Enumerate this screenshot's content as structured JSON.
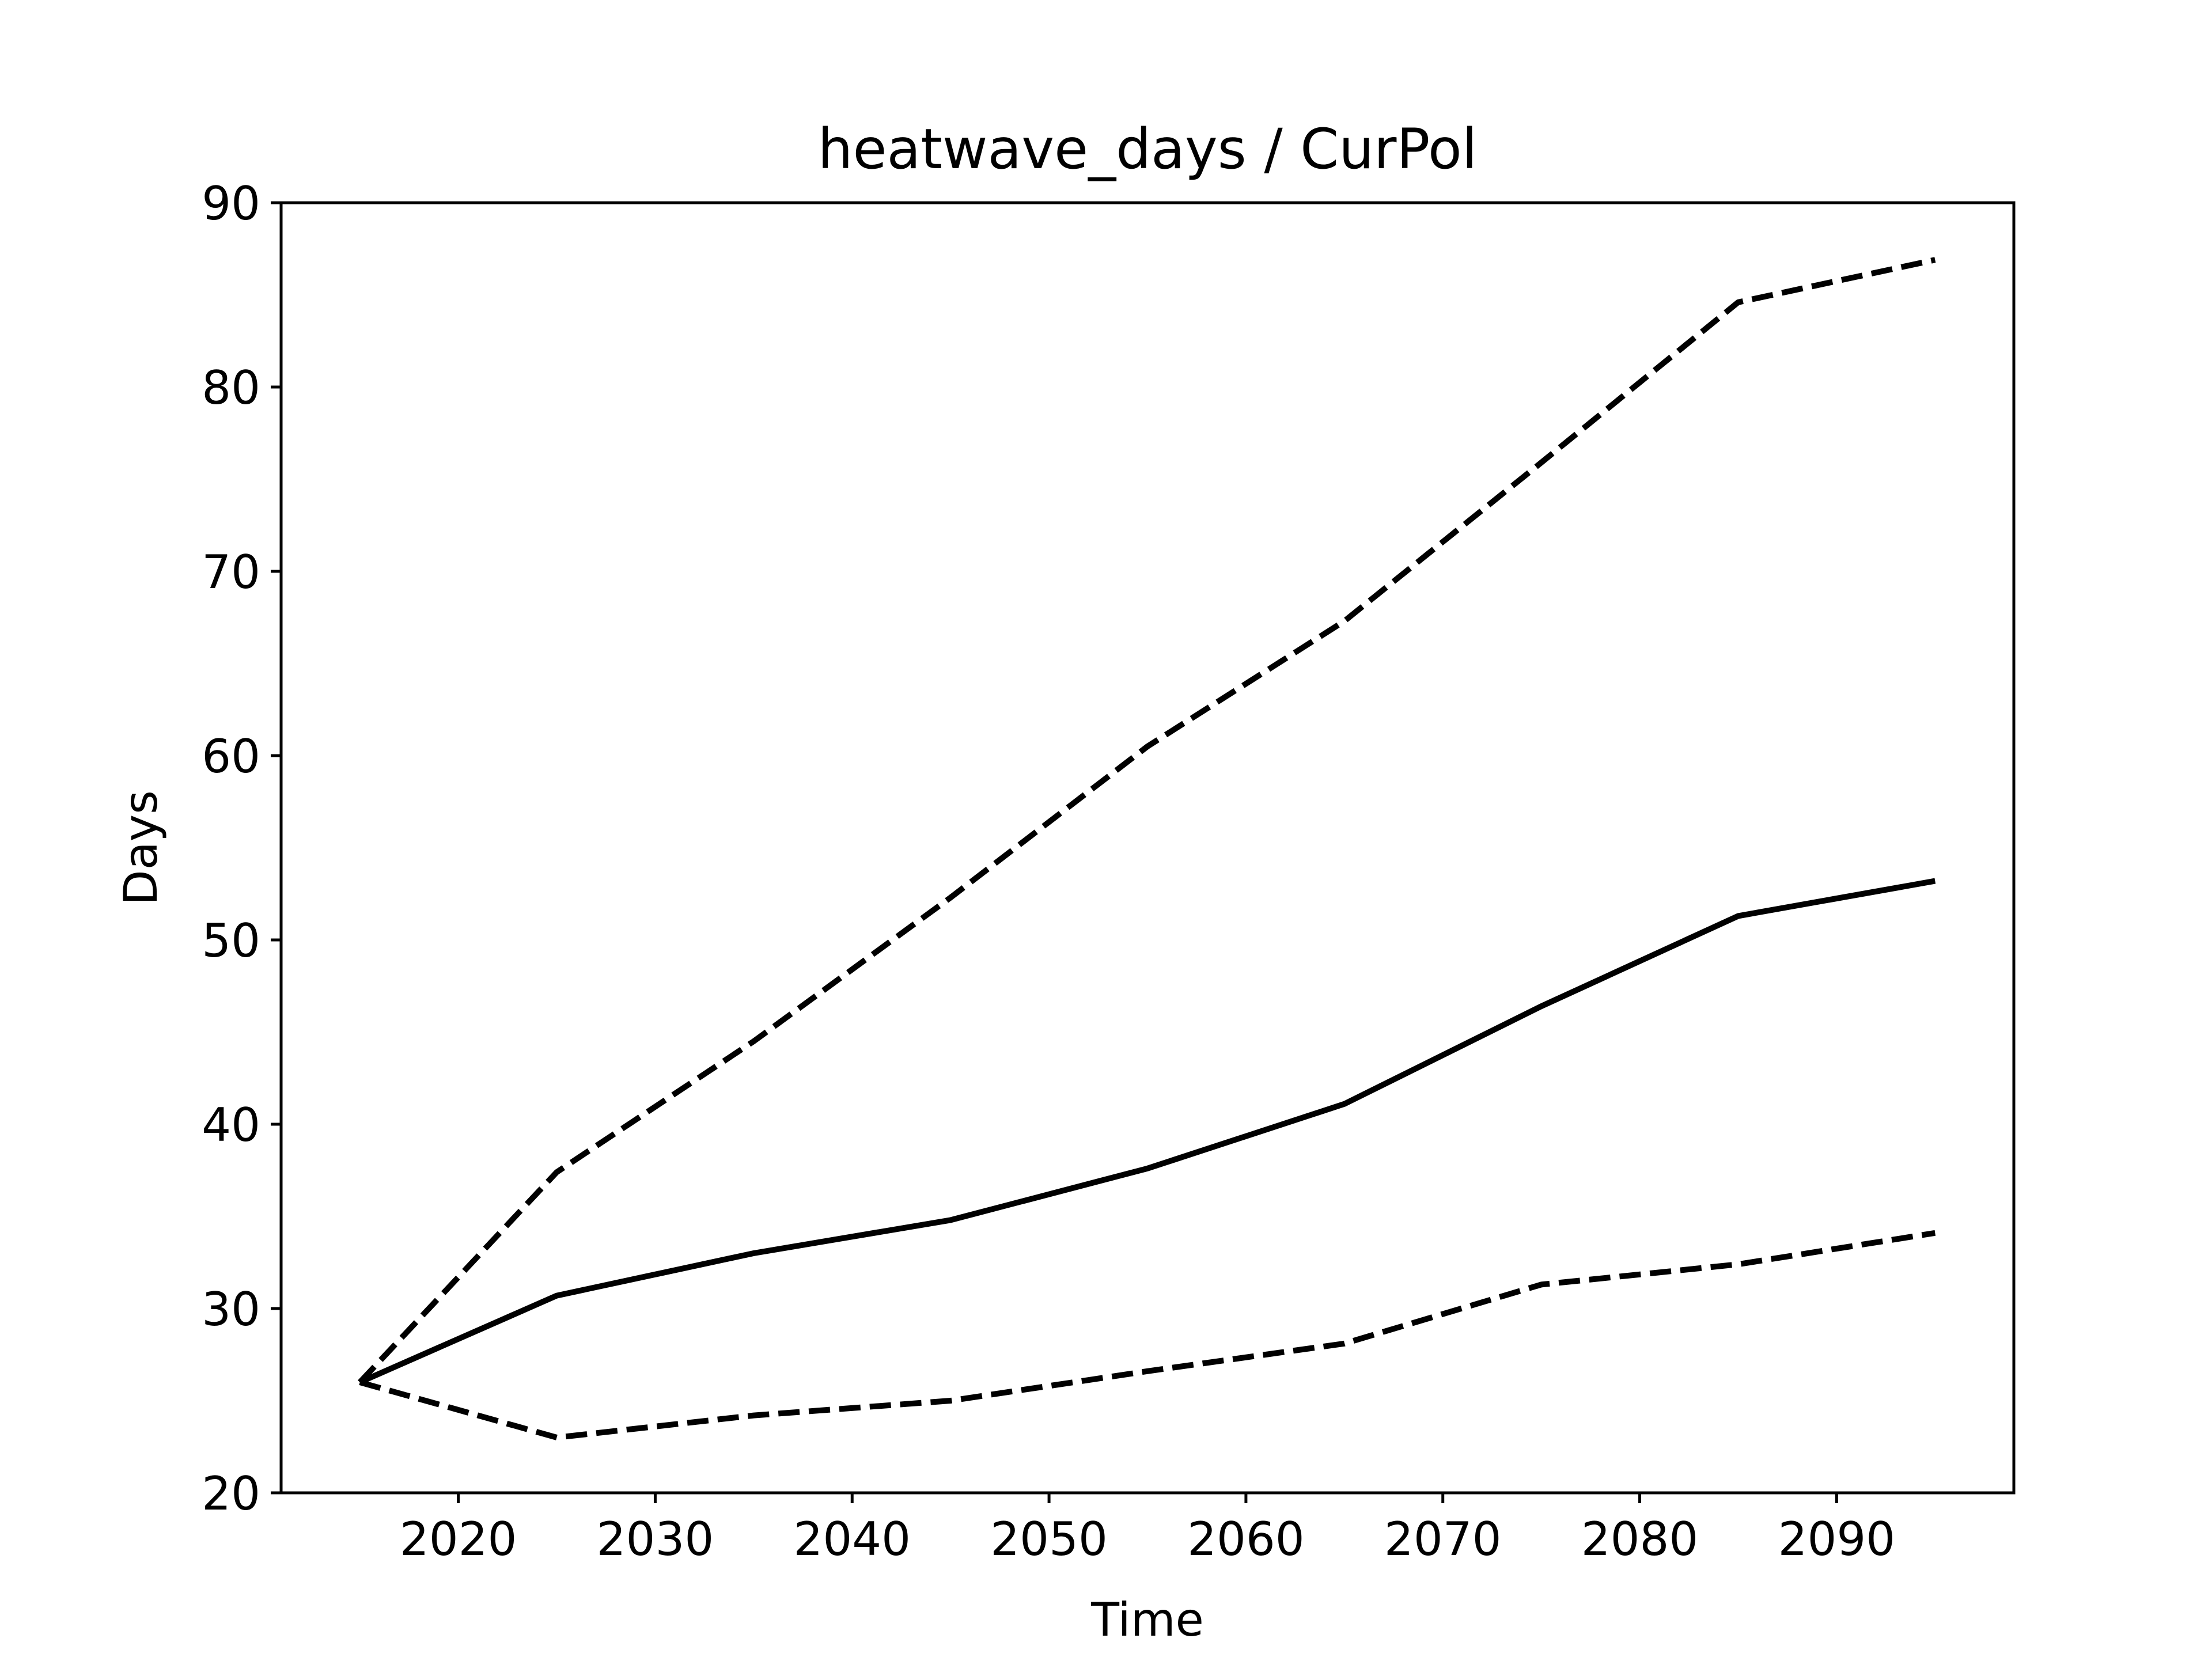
{
  "chart_data": {
    "type": "line",
    "title": "heatwave_days / CurPol",
    "xlabel": "Time",
    "ylabel": "Days",
    "xlim": [
      2011,
      2099
    ],
    "ylim": [
      20,
      90
    ],
    "xticks": [
      2020,
      2030,
      2040,
      2050,
      2060,
      2070,
      2080,
      2090
    ],
    "yticks": [
      20,
      30,
      40,
      50,
      60,
      70,
      80,
      90
    ],
    "grid": false,
    "legend": false,
    "x": [
      2015,
      2025,
      2035,
      2045,
      2055,
      2065,
      2075,
      2085,
      2095
    ],
    "series": [
      {
        "style": "solid",
        "color": "#000000",
        "values": [
          26.0,
          30.7,
          33.0,
          34.8,
          37.6,
          41.1,
          46.4,
          51.3,
          53.2
        ]
      },
      {
        "style": "dashed",
        "color": "#000000",
        "values": [
          26.0,
          37.4,
          44.5,
          52.3,
          60.5,
          67.3,
          75.9,
          84.6,
          86.9
        ]
      },
      {
        "style": "dashed",
        "color": "#000000",
        "values": [
          26.0,
          23.0,
          24.2,
          25.0,
          26.6,
          28.1,
          31.3,
          32.4,
          34.1
        ]
      }
    ]
  }
}
